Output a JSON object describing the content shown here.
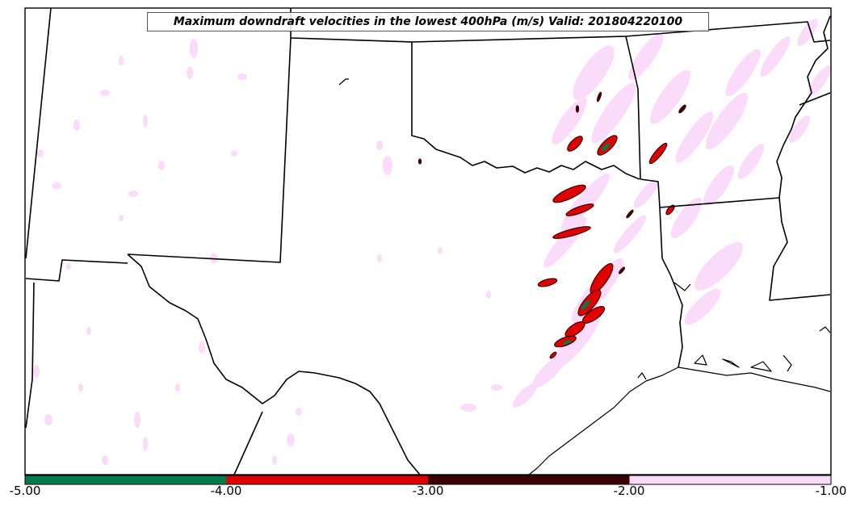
{
  "map": {
    "title": "Maximum downdraft velocities in the lowest 400hPa (m/s) Valid: 201804220100"
  },
  "colorbar": {
    "ticks": [
      "-5.00",
      "-4.00",
      "-3.00",
      "-2.00",
      "-1.00"
    ],
    "bins": [
      {
        "from": -5.0,
        "to": -4.0,
        "color": "#007a4d"
      },
      {
        "from": -4.0,
        "to": -3.0,
        "color": "#e00000"
      },
      {
        "from": -3.0,
        "to": -2.0,
        "color": "#3d0000"
      },
      {
        "from": -2.0,
        "to": -1.0,
        "color": "#fadcfa"
      }
    ]
  },
  "colors": {
    "land_outline": "#000000",
    "background": "#ffffff"
  }
}
